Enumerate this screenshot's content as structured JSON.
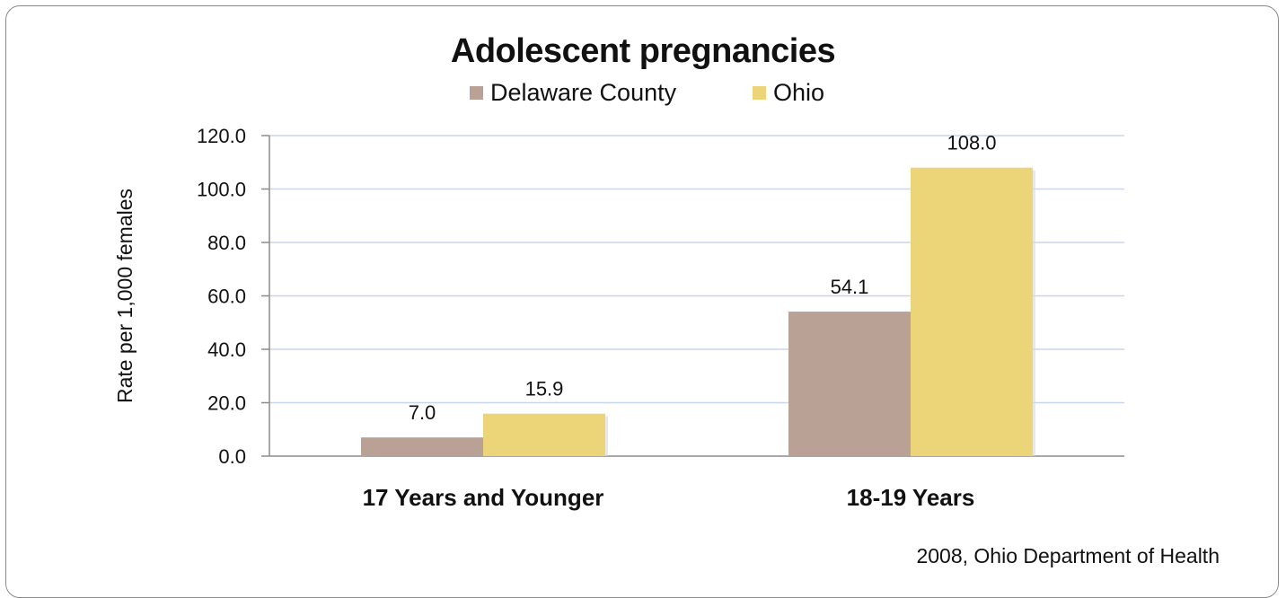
{
  "chart_data": {
    "type": "bar",
    "title": "Adolescent pregnancies",
    "ylabel": "Rate per 1,000 females",
    "categories": [
      "17 Years and Younger",
      "18-19 Years"
    ],
    "series": [
      {
        "name": "Delaware County",
        "values": [
          7.0,
          54.1
        ],
        "labels": [
          "7.0",
          "54.1"
        ],
        "color": "#b9a295"
      },
      {
        "name": "Ohio",
        "values": [
          15.9,
          108.0
        ],
        "labels": [
          "15.9",
          "108.0"
        ],
        "color": "#ecd479"
      }
    ],
    "ylim": [
      0,
      120
    ],
    "yticks": [
      "0.0",
      "20.0",
      "40.0",
      "60.0",
      "80.0",
      "100.0",
      "120.0"
    ],
    "grid": true,
    "legend_position": "top"
  },
  "source_text": "2008, Ohio Department of Health"
}
